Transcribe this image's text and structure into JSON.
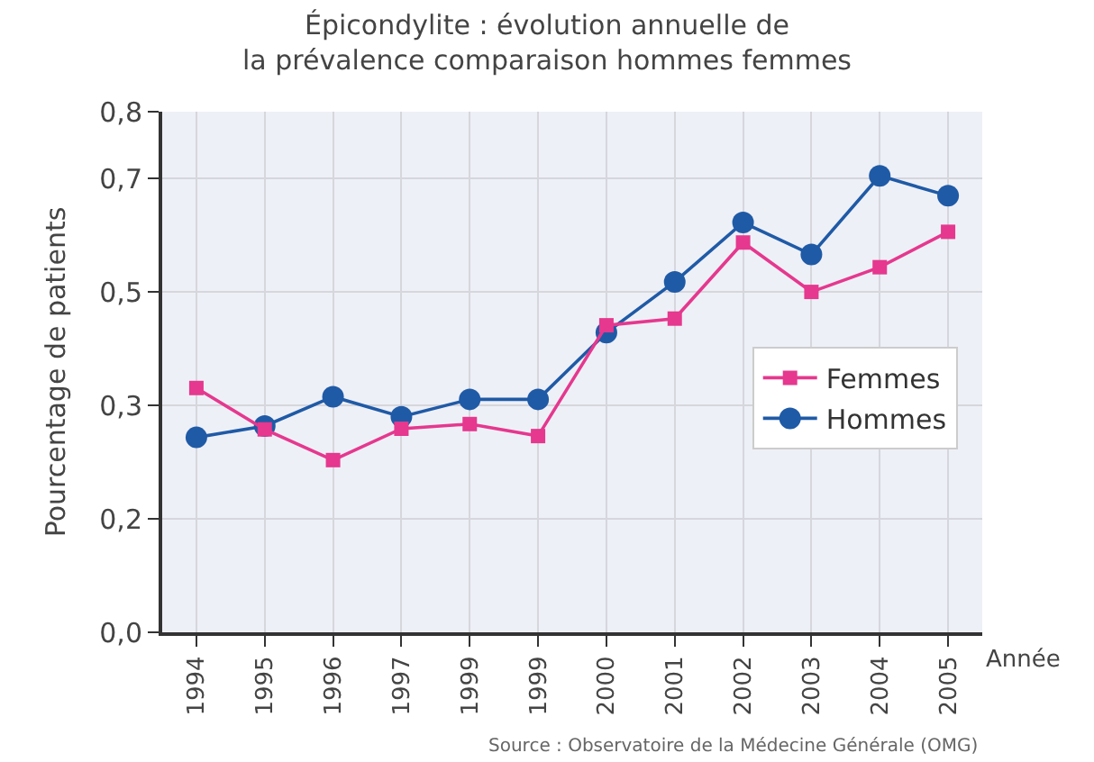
{
  "chart_data": {
    "type": "line",
    "title": "Épicondylite : évolution annuelle de\nla prévalence comparaison hommes femmes",
    "xlabel": "Année",
    "ylabel": "Pourcentage de patients",
    "categories": [
      "1994",
      "1995",
      "1996",
      "1997",
      "1999",
      "1999",
      "2000",
      "2001",
      "2002",
      "2003",
      "2004",
      "2005"
    ],
    "series": [
      {
        "name": "Femmes",
        "color": "#e5388e",
        "marker": "square",
        "values": [
          0.366,
          0.304,
          0.258,
          0.305,
          0.312,
          0.294,
          0.46,
          0.47,
          0.584,
          0.51,
          0.547,
          0.6
        ]
      },
      {
        "name": "Hommes",
        "color": "#1f5aa6",
        "marker": "circle",
        "values": [
          0.292,
          0.309,
          0.353,
          0.323,
          0.349,
          0.349,
          0.449,
          0.525,
          0.614,
          0.566,
          0.684,
          0.654
        ]
      }
    ],
    "ylim": [
      0,
      0.78
    ],
    "yticks": [
      {
        "value": 0,
        "label": "0,0"
      },
      {
        "value": 0.17,
        "label": "0,2"
      },
      {
        "value": 0.34,
        "label": "0,3"
      },
      {
        "value": 0.51,
        "label": "0,5"
      },
      {
        "value": 0.68,
        "label": "0,7"
      },
      {
        "value": 0.78,
        "label": "0,8"
      }
    ],
    "grid": true,
    "legend": "right",
    "line_style": "solid",
    "annotations": [
      "Source : Observatoire de la Médecine Générale (OMG)"
    ]
  }
}
